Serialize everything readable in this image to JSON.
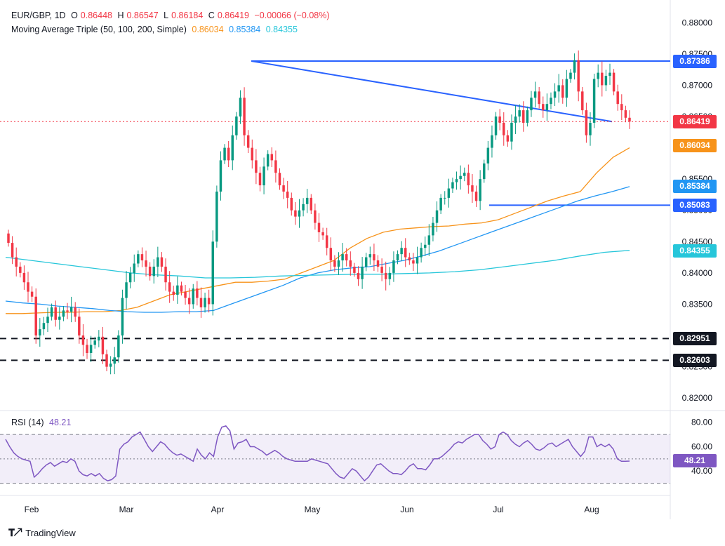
{
  "header": {
    "symbol": "EUR/GBP, 1D",
    "o_label": "O",
    "o": "0.86448",
    "h_label": "H",
    "h": "0.86547",
    "l_label": "L",
    "l": "0.86184",
    "c_label": "C",
    "c": "0.86419",
    "chg": "−0.00066 (−0.08%)",
    "ma_title": "Moving Average Triple (50, 100, 200, Simple)",
    "ma50": "0.86034",
    "ma100": "0.85384",
    "ma200": "0.84355"
  },
  "rsi": {
    "title": "RSI (14)",
    "value": "48.21"
  },
  "brand": "TradingView",
  "colors": {
    "up": "#089981",
    "down": "#f23645",
    "ma50": "#f7931a",
    "ma100": "#2196f3",
    "ma200": "#26c6da",
    "trend": "#2962ff",
    "rsi": "#7e57c2"
  },
  "chart_data": {
    "type": "candlestick",
    "x_labels": [
      "Feb",
      "Mar",
      "Apr",
      "May",
      "Jun",
      "Jul",
      "Aug"
    ],
    "y_ticks": [
      "0.88000",
      "0.87500",
      "0.87000",
      "0.86500",
      "0.86000",
      "0.85500",
      "0.85000",
      "0.84500",
      "0.84000",
      "0.83500",
      "0.83000",
      "0.82500",
      "0.82000"
    ],
    "ylim": [
      0.818,
      0.8825
    ],
    "price_labels": [
      "0.87386",
      "0.86419",
      "0.86034",
      "0.85384",
      "0.85083",
      "0.84355",
      "0.82951",
      "0.82603"
    ],
    "horizontal_levels": [
      0.87386,
      0.85083,
      0.82951,
      0.82603
    ],
    "closes": [
      0.8448,
      0.8425,
      0.841,
      0.84,
      0.8385,
      0.837,
      0.8362,
      0.83,
      0.831,
      0.832,
      0.833,
      0.8345,
      0.8325,
      0.833,
      0.834,
      0.8338,
      0.8345,
      0.833,
      0.83,
      0.8285,
      0.8272,
      0.8285,
      0.8292,
      0.8298,
      0.827,
      0.825,
      0.8255,
      0.8265,
      0.83,
      0.836,
      0.8385,
      0.84,
      0.8415,
      0.843,
      0.842,
      0.841,
      0.8395,
      0.841,
      0.8425,
      0.841,
      0.8385,
      0.837,
      0.8365,
      0.838,
      0.837,
      0.836,
      0.835,
      0.8375,
      0.836,
      0.8345,
      0.836,
      0.835,
      0.845,
      0.853,
      0.858,
      0.86,
      0.858,
      0.862,
      0.865,
      0.868,
      0.862,
      0.86,
      0.858,
      0.856,
      0.854,
      0.857,
      0.859,
      0.858,
      0.856,
      0.854,
      0.853,
      0.852,
      0.85,
      0.849,
      0.85,
      0.851,
      0.852,
      0.85,
      0.848,
      0.8465,
      0.846,
      0.844,
      0.842,
      0.841,
      0.842,
      0.843,
      0.842,
      0.841,
      0.84,
      0.839,
      0.841,
      0.8425,
      0.843,
      0.842,
      0.841,
      0.84,
      0.839,
      0.84,
      0.842,
      0.843,
      0.844,
      0.8425,
      0.842,
      0.8415,
      0.8425,
      0.844,
      0.8445,
      0.846,
      0.848,
      0.85,
      0.852,
      0.852,
      0.8535,
      0.8545,
      0.855,
      0.8555,
      0.856,
      0.854,
      0.853,
      0.8515,
      0.855,
      0.8575,
      0.86,
      0.862,
      0.865,
      0.864,
      0.862,
      0.861,
      0.864,
      0.865,
      0.866,
      0.864,
      0.866,
      0.868,
      0.869,
      0.867,
      0.866,
      0.867,
      0.868,
      0.869,
      0.87,
      0.868,
      0.871,
      0.872,
      0.874,
      0.869,
      0.866,
      0.862,
      0.864,
      0.871,
      0.872,
      0.87,
      0.8715,
      0.872,
      0.869,
      0.867,
      0.866,
      0.8648,
      0.8642
    ],
    "ma50": [
      0.8335,
      0.8335,
      0.8336,
      0.8337,
      0.8337,
      0.8338,
      0.8338,
      0.834,
      0.8345,
      0.8355,
      0.8365,
      0.837,
      0.8375,
      0.838,
      0.8385,
      0.8385,
      0.8387,
      0.839,
      0.84,
      0.841,
      0.842,
      0.844,
      0.8455,
      0.8465,
      0.847,
      0.8472,
      0.8474,
      0.8475,
      0.8478,
      0.848,
      0.8485,
      0.8495,
      0.8505,
      0.8515,
      0.8523,
      0.853,
      0.856,
      0.8585,
      0.86
    ],
    "ma100": [
      0.8355,
      0.8352,
      0.835,
      0.8347,
      0.8345,
      0.8343,
      0.834,
      0.8338,
      0.8337,
      0.8337,
      0.8338,
      0.8338,
      0.834,
      0.835,
      0.836,
      0.837,
      0.838,
      0.8392,
      0.84,
      0.8405,
      0.8408,
      0.841,
      0.8415,
      0.842,
      0.8427,
      0.8435,
      0.8445,
      0.8455,
      0.8465,
      0.8475,
      0.8485,
      0.8495,
      0.8505,
      0.8515,
      0.8523,
      0.853,
      0.8538
    ],
    "ma200": [
      0.8425,
      0.842,
      0.8415,
      0.841,
      0.8405,
      0.84,
      0.8397,
      0.8395,
      0.8392,
      0.8392,
      0.8393,
      0.8395,
      0.8396,
      0.8397,
      0.8398,
      0.8398,
      0.8399,
      0.84,
      0.8402,
      0.8405,
      0.841,
      0.8415,
      0.842,
      0.8427,
      0.8433,
      0.8436
    ],
    "rsi": {
      "ylim": [
        20,
        85
      ],
      "ticks": [
        "80.00",
        "60.00",
        "40.00"
      ],
      "bands": [
        70,
        50,
        30
      ],
      "values": [
        66,
        60,
        55,
        52,
        50,
        49,
        48,
        35,
        38,
        42,
        45,
        47,
        44,
        46,
        48,
        47,
        50,
        48,
        40,
        37,
        36,
        38,
        36,
        38,
        34,
        32,
        33,
        36,
        58,
        62,
        64,
        68,
        70,
        72,
        66,
        60,
        56,
        60,
        64,
        62,
        58,
        55,
        53,
        54,
        52,
        50,
        48,
        58,
        53,
        50,
        55,
        52,
        68,
        76,
        77,
        73,
        58,
        63,
        64,
        66,
        60,
        60,
        58,
        56,
        53,
        55,
        57,
        55,
        52,
        50,
        49,
        48,
        48,
        48,
        48,
        50,
        49,
        48,
        47,
        46,
        42,
        38,
        35,
        34,
        38,
        42,
        40,
        36,
        32,
        35,
        40,
        45,
        46,
        43,
        40,
        38,
        38,
        37,
        40,
        44,
        46,
        42,
        42,
        41,
        45,
        50,
        50,
        52,
        55,
        58,
        62,
        64,
        63,
        66,
        68,
        70,
        70,
        65,
        62,
        58,
        60,
        70,
        72,
        70,
        65,
        62,
        60,
        63,
        65,
        62,
        58,
        57,
        59,
        62,
        63,
        60,
        62,
        64,
        66,
        60,
        56,
        52,
        56,
        68,
        68,
        60,
        62,
        60,
        62,
        58,
        50,
        48,
        48,
        48.21
      ]
    }
  }
}
